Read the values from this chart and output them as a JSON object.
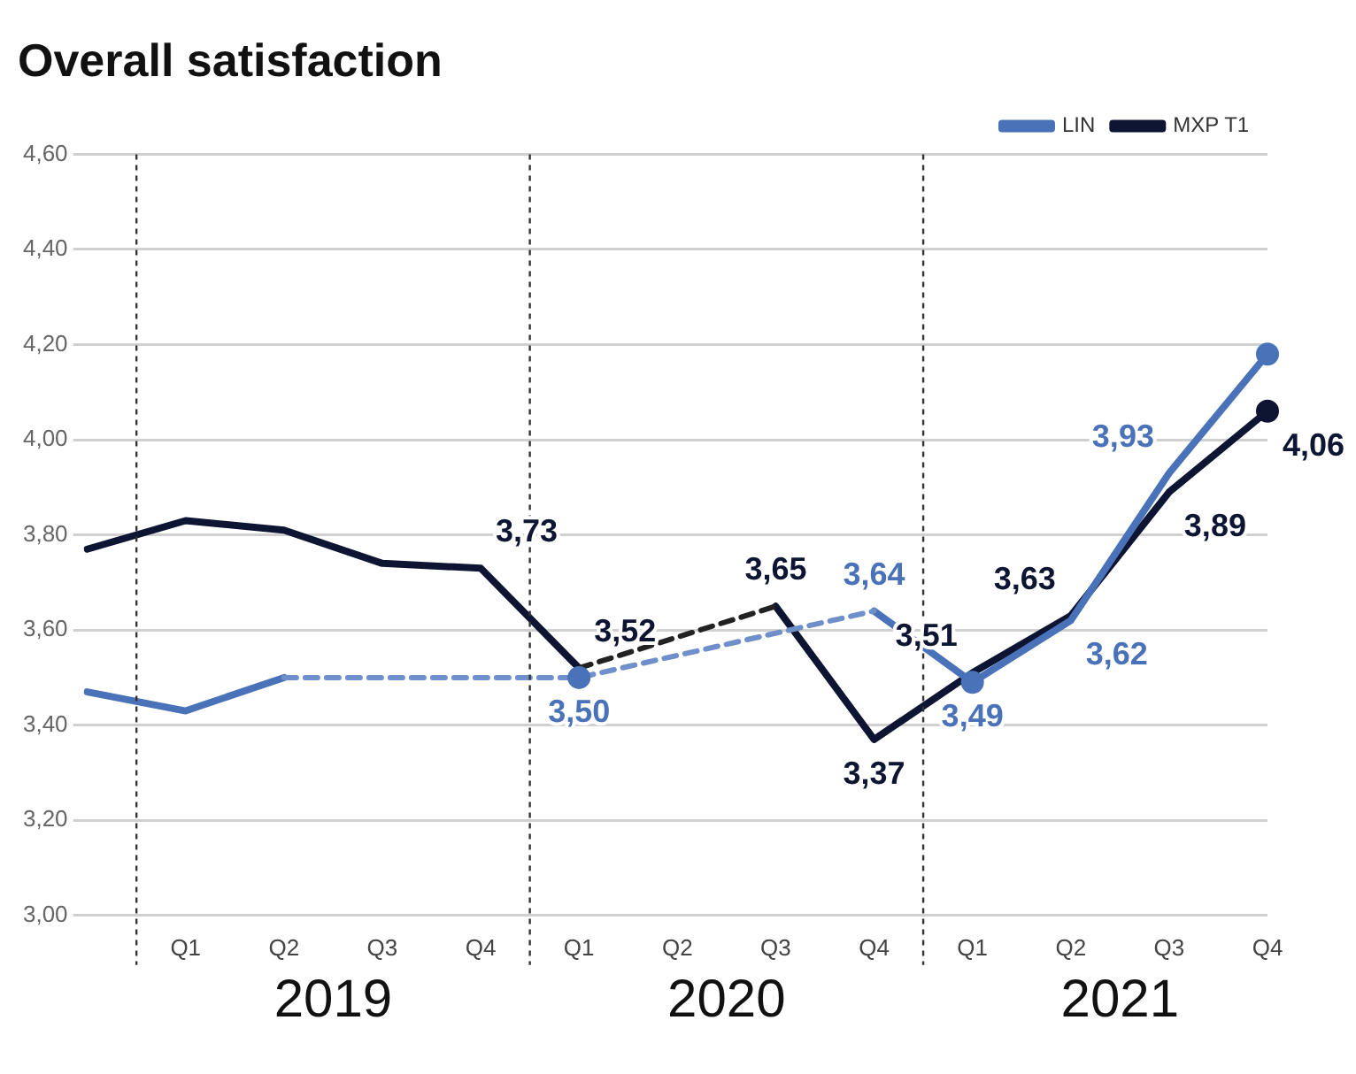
{
  "chart_data": {
    "type": "line",
    "title": "Overall satisfaction",
    "categories": [
      null,
      "Q1",
      "Q2",
      "Q3",
      "Q4",
      "Q1",
      "Q2",
      "Q3",
      "Q4",
      "Q1",
      "Q2",
      "Q3",
      "Q4"
    ],
    "series": [
      {
        "name": "LIN",
        "color": "#4a72b8",
        "values": [
          3.47,
          3.43,
          3.5,
          null,
          null,
          null,
          null,
          null,
          3.64,
          3.49,
          3.62,
          3.93,
          4.18
        ],
        "value_labels": [
          null,
          null,
          null,
          null,
          null,
          null,
          null,
          null,
          "3,64",
          "3,49",
          "3,62",
          "3,93",
          null
        ]
      },
      {
        "name": "MXP T1",
        "color": "#0d1533",
        "values": [
          3.77,
          3.83,
          3.81,
          3.74,
          3.73,
          3.52,
          null,
          3.65,
          3.37,
          3.51,
          3.63,
          3.89,
          4.06
        ],
        "value_labels": [
          null,
          null,
          null,
          null,
          "3,73",
          "3,52",
          null,
          "3,65",
          "3,37",
          "3,51",
          "3,63",
          "3,89",
          "4,06"
        ]
      },
      {
        "color": "#6f8fca",
        "line_style": "dashed",
        "values": [
          null,
          null,
          3.5,
          null,
          null,
          3.5,
          null,
          null,
          3.64,
          null,
          null,
          null,
          null
        ]
      },
      {
        "color": "#222222",
        "line_style": "dashed",
        "values": [
          null,
          null,
          null,
          null,
          null,
          3.52,
          null,
          3.65,
          null,
          null,
          null,
          null,
          null
        ]
      },
      {
        "type": "scatter",
        "marker": "circle",
        "color": "#4a72b8",
        "values": [
          null,
          null,
          null,
          null,
          null,
          3.5,
          null,
          null,
          null,
          3.49,
          null,
          null,
          4.18
        ],
        "value_labels": [
          null,
          null,
          null,
          null,
          null,
          "3,50",
          null,
          null,
          null,
          null,
          null,
          null,
          null
        ]
      },
      {
        "type": "scatter",
        "marker": "circle",
        "color": "#0d1533",
        "values": [
          null,
          null,
          null,
          null,
          null,
          null,
          null,
          null,
          null,
          null,
          null,
          null,
          4.06
        ]
      }
    ],
    "ylim": [
      3,
      4.6
    ],
    "yticks": [
      {
        "value": 3,
        "label": "3,00"
      },
      {
        "value": 3.2,
        "label": "3,20"
      },
      {
        "value": 3.4,
        "label": "3,40"
      },
      {
        "value": 3.6,
        "label": "3,60"
      },
      {
        "value": 3.8,
        "label": "3,80"
      },
      {
        "value": 4,
        "label": "4,00"
      },
      {
        "value": 4.2,
        "label": "4,20"
      },
      {
        "value": 4.4,
        "label": "4,40"
      },
      {
        "value": 4.6,
        "label": "4,60"
      }
    ],
    "grid": "y",
    "legend": "top right",
    "annotations": [
      "2019",
      "2020",
      "2021"
    ]
  }
}
